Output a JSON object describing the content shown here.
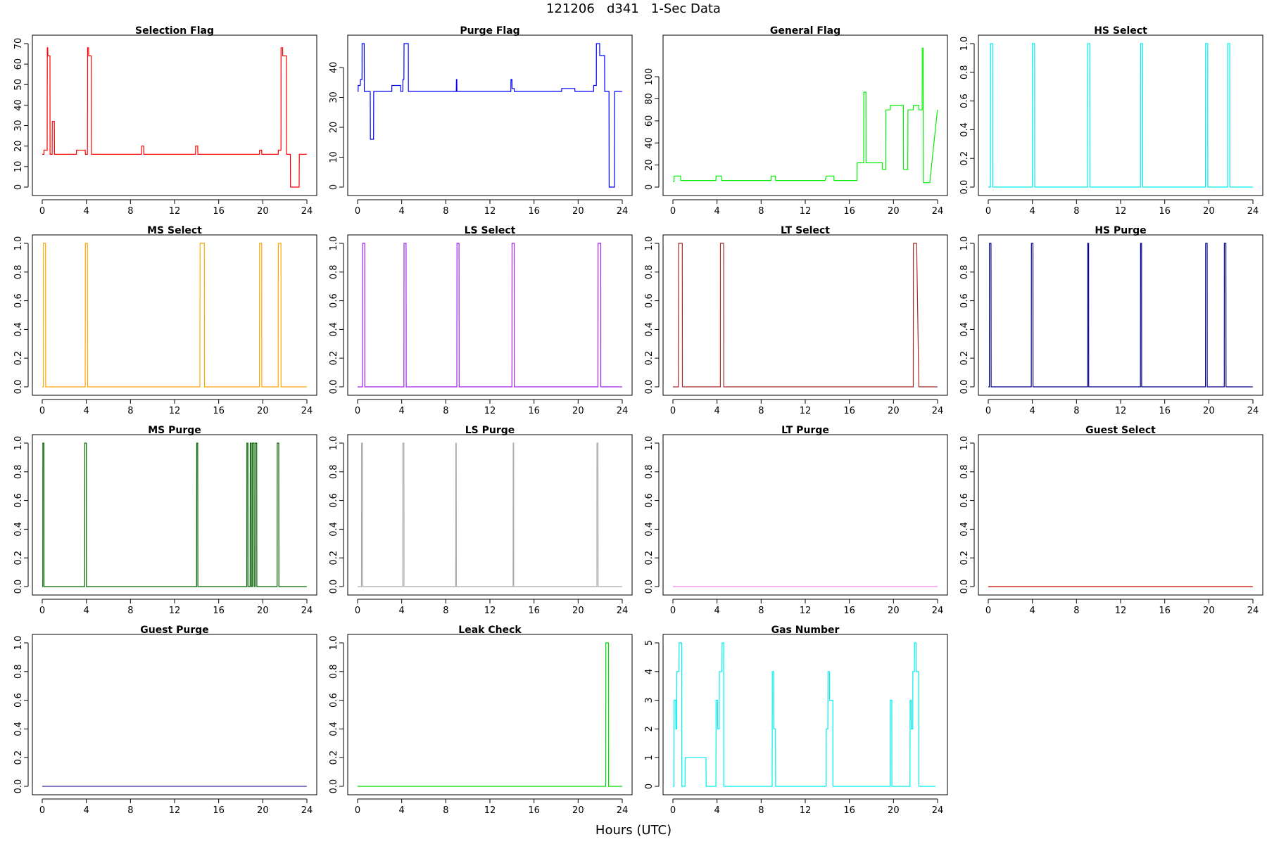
{
  "title": "121206   d341   1-Sec Data",
  "xlabel": "Hours (UTC)",
  "chart_data": [
    {
      "type": "line",
      "title": "Selection Flag",
      "color": "#ff0000",
      "xlim": [
        0,
        24
      ],
      "ylim": [
        0,
        70
      ],
      "xticks": [
        0,
        4,
        8,
        12,
        16,
        20,
        24
      ],
      "yticks": [
        0,
        10,
        20,
        30,
        40,
        50,
        60,
        70
      ],
      "x": [
        0,
        0.15,
        0.16,
        0.45,
        0.46,
        0.5,
        0.51,
        0.7,
        0.71,
        0.9,
        0.91,
        1.1,
        1.11,
        3.1,
        3.11,
        3.9,
        3.91,
        4.1,
        4.11,
        4.2,
        4.21,
        4.45,
        4.46,
        9.0,
        9.01,
        9.2,
        9.21,
        13.9,
        13.91,
        14.1,
        14.11,
        14.5,
        14.51,
        19.7,
        19.71,
        19.9,
        19.91,
        21.4,
        21.41,
        21.65,
        21.66,
        21.8,
        21.81,
        22.15,
        22.16,
        22.5,
        22.51,
        23.3,
        23.31,
        23.99
      ],
      "y": [
        16,
        16,
        18,
        18,
        68,
        68,
        64,
        64,
        16,
        16,
        32,
        32,
        16,
        16,
        18,
        18,
        16,
        16,
        68,
        68,
        64,
        64,
        16,
        16,
        20,
        20,
        16,
        16,
        20,
        20,
        16,
        16,
        16,
        16,
        18,
        18,
        16,
        16,
        18,
        18,
        68,
        68,
        64,
        64,
        16,
        16,
        0,
        0,
        16,
        16
      ]
    },
    {
      "type": "line",
      "title": "Purge Flag",
      "color": "#0000ff",
      "xlim": [
        0,
        24
      ],
      "ylim": [
        0,
        48
      ],
      "xticks": [
        0,
        4,
        8,
        12,
        16,
        20,
        24
      ],
      "yticks": [
        0,
        10,
        20,
        30,
        40
      ],
      "x": [
        0,
        0.05,
        0.06,
        0.25,
        0.26,
        0.4,
        0.41,
        0.6,
        0.61,
        1.15,
        1.16,
        1.45,
        1.46,
        3.1,
        3.11,
        3.9,
        3.91,
        4.1,
        4.11,
        4.2,
        4.21,
        4.6,
        4.61,
        8.95,
        8.96,
        9.0,
        9.01,
        13.9,
        13.91,
        14.0,
        14.01,
        14.2,
        14.21,
        18.5,
        18.51,
        19.2,
        19.21,
        19.7,
        19.71,
        21.4,
        21.41,
        21.65,
        21.66,
        21.95,
        21.96,
        22.4,
        22.41,
        22.8,
        22.81,
        23.3,
        23.31,
        23.99
      ],
      "y": [
        32,
        32,
        34,
        34,
        36,
        36,
        48,
        48,
        32,
        32,
        16,
        16,
        32,
        32,
        34,
        34,
        32,
        32,
        36,
        36,
        48,
        48,
        32,
        32,
        36,
        36,
        32,
        32,
        36,
        36,
        33,
        33,
        32,
        32,
        33,
        33,
        33,
        33,
        32,
        32,
        34,
        34,
        48,
        48,
        44,
        44,
        32,
        32,
        0,
        0,
        32,
        32
      ]
    },
    {
      "type": "line",
      "title": "General Flag",
      "color": "#00ee00",
      "xlim": [
        0,
        24
      ],
      "ylim": [
        0,
        130
      ],
      "xticks": [
        0,
        4,
        8,
        12,
        16,
        20,
        24
      ],
      "yticks": [
        0,
        20,
        40,
        60,
        80,
        100
      ],
      "x": [
        0,
        0.1,
        0.11,
        0.7,
        0.71,
        3.9,
        3.91,
        4.4,
        4.41,
        8.9,
        8.91,
        9.3,
        9.31,
        13.8,
        13.91,
        14.6,
        14.61,
        16.7,
        16.71,
        17.3,
        17.31,
        17.5,
        17.51,
        19.0,
        19.01,
        19.3,
        19.31,
        19.7,
        19.71,
        20.9,
        20.91,
        21.3,
        21.31,
        21.8,
        21.81,
        22.3,
        22.31,
        22.6,
        22.61,
        22.7,
        22.71,
        23.3,
        23.31,
        23.99
      ],
      "y": [
        5,
        5,
        10,
        10,
        6,
        6,
        10,
        10,
        6,
        6,
        10,
        10,
        6,
        6,
        10,
        10,
        6,
        6,
        22,
        22,
        86,
        86,
        22,
        22,
        16,
        16,
        70,
        70,
        74,
        74,
        16,
        16,
        70,
        70,
        74,
        74,
        70,
        70,
        126,
        126,
        4,
        4,
        6,
        70
      ]
    },
    {
      "type": "line",
      "title": "HS Select",
      "color": "#00eeee",
      "xlim": [
        0,
        24
      ],
      "ylim": [
        0,
        1
      ],
      "xticks": [
        0,
        4,
        8,
        12,
        16,
        20,
        24
      ],
      "yticks": [
        0.0,
        0.2,
        0.4,
        0.6,
        0.8,
        1.0
      ],
      "x": [
        0,
        0.2,
        0.21,
        0.4,
        0.41,
        4.0,
        4.01,
        4.2,
        4.21,
        9.0,
        9.01,
        9.2,
        9.21,
        13.8,
        13.81,
        14.0,
        14.01,
        19.7,
        19.71,
        19.9,
        19.91,
        21.7,
        21.71,
        21.9,
        21.91,
        23.99
      ],
      "y": [
        0,
        0,
        1,
        1,
        0,
        0,
        1,
        1,
        0,
        0,
        1,
        1,
        0,
        0,
        1,
        1,
        0,
        0,
        1,
        1,
        0,
        0,
        1,
        1,
        0,
        0
      ]
    },
    {
      "type": "line",
      "title": "MS Select",
      "color": "#ffa500",
      "xlim": [
        0,
        24
      ],
      "ylim": [
        0,
        1
      ],
      "xticks": [
        0,
        4,
        8,
        12,
        16,
        20,
        24
      ],
      "yticks": [
        0.0,
        0.2,
        0.4,
        0.6,
        0.8,
        1.0
      ],
      "x": [
        0,
        0.1,
        0.11,
        0.3,
        0.31,
        3.9,
        3.91,
        4.1,
        4.11,
        14.3,
        14.31,
        14.7,
        14.71,
        19.7,
        19.71,
        19.9,
        19.91,
        21.4,
        21.41,
        21.65,
        21.66,
        23.99
      ],
      "y": [
        0,
        0,
        1,
        1,
        0,
        0,
        1,
        1,
        0,
        0,
        1,
        1,
        0,
        0,
        1,
        1,
        0,
        0,
        1,
        1,
        0,
        0
      ]
    },
    {
      "type": "line",
      "title": "LS Select",
      "color": "#a020f0",
      "xlim": [
        0,
        24
      ],
      "ylim": [
        0,
        1
      ],
      "xticks": [
        0,
        4,
        8,
        12,
        16,
        20,
        24
      ],
      "yticks": [
        0.0,
        0.2,
        0.4,
        0.6,
        0.8,
        1.0
      ],
      "x": [
        0,
        0.45,
        0.46,
        0.65,
        0.66,
        4.2,
        4.21,
        4.4,
        4.41,
        9.0,
        9.01,
        9.2,
        9.21,
        14.0,
        14.01,
        14.2,
        14.21,
        21.8,
        21.81,
        22.05,
        22.06,
        23.99
      ],
      "y": [
        0,
        0,
        1,
        1,
        0,
        0,
        1,
        1,
        0,
        0,
        1,
        1,
        0,
        0,
        1,
        1,
        0,
        0,
        1,
        1,
        0,
        0
      ]
    },
    {
      "type": "line",
      "title": "LT Select",
      "color": "#a52a2a",
      "xlim": [
        0,
        24
      ],
      "ylim": [
        0,
        1
      ],
      "xticks": [
        0,
        4,
        8,
        12,
        16,
        20,
        24
      ],
      "yticks": [
        0.0,
        0.2,
        0.4,
        0.6,
        0.8,
        1.0
      ],
      "x": [
        0,
        0.5,
        0.51,
        0.85,
        0.86,
        4.3,
        4.31,
        4.6,
        4.61,
        21.8,
        21.81,
        22.1,
        22.3,
        23.99
      ],
      "y": [
        0,
        0,
        1,
        1,
        0,
        0,
        1,
        1,
        0,
        0,
        1,
        1,
        0,
        0
      ]
    },
    {
      "type": "line",
      "title": "HS Purge",
      "color": "#00008b",
      "xlim": [
        0,
        24
      ],
      "ylim": [
        0,
        1
      ],
      "xticks": [
        0,
        4,
        8,
        12,
        16,
        20,
        24
      ],
      "yticks": [
        0.0,
        0.2,
        0.4,
        0.6,
        0.8,
        1.0
      ],
      "x": [
        0,
        0.1,
        0.11,
        0.25,
        0.26,
        3.9,
        3.91,
        4.05,
        4.06,
        9.0,
        9.01,
        9.1,
        9.11,
        13.8,
        13.81,
        13.9,
        13.91,
        19.7,
        19.71,
        19.85,
        19.86,
        21.4,
        21.41,
        21.55,
        21.56,
        23.99
      ],
      "y": [
        0,
        0,
        1,
        1,
        0,
        0,
        1,
        1,
        0,
        0,
        1,
        1,
        0,
        0,
        1,
        1,
        0,
        0,
        1,
        1,
        0,
        0,
        1,
        1,
        0,
        0
      ]
    },
    {
      "type": "line",
      "title": "MS Purge",
      "color": "#006400",
      "xlim": [
        0,
        24
      ],
      "ylim": [
        0,
        1
      ],
      "xticks": [
        0,
        4,
        8,
        12,
        16,
        20,
        24
      ],
      "yticks": [
        0.0,
        0.2,
        0.4,
        0.6,
        0.8,
        1.0
      ],
      "x": [
        0,
        0.05,
        0.06,
        0.15,
        0.16,
        3.85,
        3.86,
        4.0,
        4.01,
        14.0,
        14.01,
        14.1,
        14.11,
        18.55,
        18.56,
        18.65,
        18.66,
        18.85,
        18.86,
        18.95,
        18.96,
        19.05,
        19.06,
        19.2,
        19.21,
        19.3,
        19.31,
        19.45,
        19.46,
        19.6,
        19.61,
        21.3,
        21.31,
        21.45,
        21.46,
        23.99
      ],
      "y": [
        0,
        0,
        1,
        1,
        0,
        0,
        1,
        1,
        0,
        0,
        1,
        1,
        0,
        0,
        1,
        1,
        0,
        0,
        1,
        1,
        0,
        0,
        1,
        1,
        0,
        0,
        1,
        1,
        0,
        0,
        0,
        0,
        1,
        1,
        0,
        0
      ]
    },
    {
      "type": "line",
      "title": "LS Purge",
      "color": "#a9a9a9",
      "xlim": [
        0,
        24
      ],
      "ylim": [
        0,
        1
      ],
      "xticks": [
        0,
        4,
        8,
        12,
        16,
        20,
        24
      ],
      "yticks": [
        0.0,
        0.2,
        0.4,
        0.6,
        0.8,
        1.0
      ],
      "x": [
        0,
        0.35,
        0.36,
        0.45,
        0.46,
        4.1,
        4.11,
        4.2,
        4.21,
        8.9,
        8.91,
        8.95,
        8.96,
        14.1,
        14.11,
        14.15,
        14.16,
        21.7,
        21.71,
        21.8,
        21.81,
        23.99
      ],
      "y": [
        0,
        0,
        1,
        1,
        0,
        0,
        1,
        1,
        0,
        0,
        1,
        1,
        0,
        0,
        1,
        1,
        0,
        0,
        1,
        1,
        0,
        0
      ]
    },
    {
      "type": "line",
      "title": "LT Purge",
      "color": "#ee82ee",
      "xlim": [
        0,
        24
      ],
      "ylim": [
        0,
        1
      ],
      "xticks": [
        0,
        4,
        8,
        12,
        16,
        20,
        24
      ],
      "yticks": [
        0.0,
        0.2,
        0.4,
        0.6,
        0.8,
        1.0
      ],
      "x": [
        0,
        23.99
      ],
      "y": [
        0,
        0
      ]
    },
    {
      "type": "line",
      "title": "Guest Select",
      "color": "#cc0000",
      "xlim": [
        0,
        24
      ],
      "ylim": [
        0,
        1
      ],
      "xticks": [
        0,
        4,
        8,
        12,
        16,
        20,
        24
      ],
      "yticks": [
        0.0,
        0.2,
        0.4,
        0.6,
        0.8,
        1.0
      ],
      "x": [
        0,
        23.99
      ],
      "y": [
        0,
        0
      ]
    },
    {
      "type": "line",
      "title": "Guest Purge",
      "color": "#3a2aa8",
      "xlim": [
        0,
        24
      ],
      "ylim": [
        0,
        1
      ],
      "xticks": [
        0,
        4,
        8,
        12,
        16,
        20,
        24
      ],
      "yticks": [
        0.0,
        0.2,
        0.4,
        0.6,
        0.8,
        1.0
      ],
      "x": [
        0,
        23.99
      ],
      "y": [
        0,
        0
      ]
    },
    {
      "type": "line",
      "title": "Leak Check",
      "color": "#00dd00",
      "xlim": [
        0,
        24
      ],
      "ylim": [
        0,
        1
      ],
      "xticks": [
        0,
        4,
        8,
        12,
        16,
        20,
        24
      ],
      "yticks": [
        0.0,
        0.2,
        0.4,
        0.6,
        0.8,
        1.0
      ],
      "x": [
        0,
        22.5,
        22.51,
        22.75,
        22.76,
        23.99
      ],
      "y": [
        0,
        0,
        1,
        1,
        0,
        0
      ]
    },
    {
      "type": "line",
      "title": "Gas Number",
      "color": "#00eeee",
      "xlim": [
        0,
        24
      ],
      "ylim": [
        0,
        5
      ],
      "xticks": [
        0,
        4,
        8,
        12,
        16,
        20,
        24
      ],
      "yticks": [
        0,
        1,
        2,
        3,
        4,
        5
      ],
      "x": [
        0,
        0.1,
        0.11,
        0.25,
        0.26,
        0.35,
        0.36,
        0.55,
        0.56,
        0.8,
        0.81,
        1.1,
        1.11,
        3.0,
        3.01,
        3.9,
        3.91,
        4.05,
        4.06,
        4.2,
        4.21,
        4.45,
        4.46,
        4.6,
        4.61,
        9.0,
        9.01,
        9.15,
        9.16,
        9.3,
        9.31,
        13.9,
        13.91,
        14.05,
        14.06,
        14.2,
        14.21,
        14.5,
        14.51,
        19.7,
        19.71,
        19.85,
        19.86,
        21.5,
        21.51,
        21.6,
        21.61,
        21.75,
        21.76,
        21.9,
        21.91,
        22.05,
        22.06,
        22.3,
        22.31,
        22.35,
        23.8
      ],
      "y": [
        0,
        0,
        3,
        3,
        2,
        2,
        4,
        4,
        5,
        5,
        0,
        0,
        1,
        1,
        0,
        0,
        3,
        3,
        2,
        2,
        4,
        4,
        5,
        5,
        0,
        0,
        4,
        4,
        2,
        2,
        0,
        0,
        2,
        2,
        4,
        4,
        3,
        3,
        0,
        0,
        3,
        3,
        0,
        0,
        3,
        3,
        2,
        2,
        4,
        4,
        5,
        5,
        4,
        4,
        0,
        0,
        0
      ]
    }
  ]
}
